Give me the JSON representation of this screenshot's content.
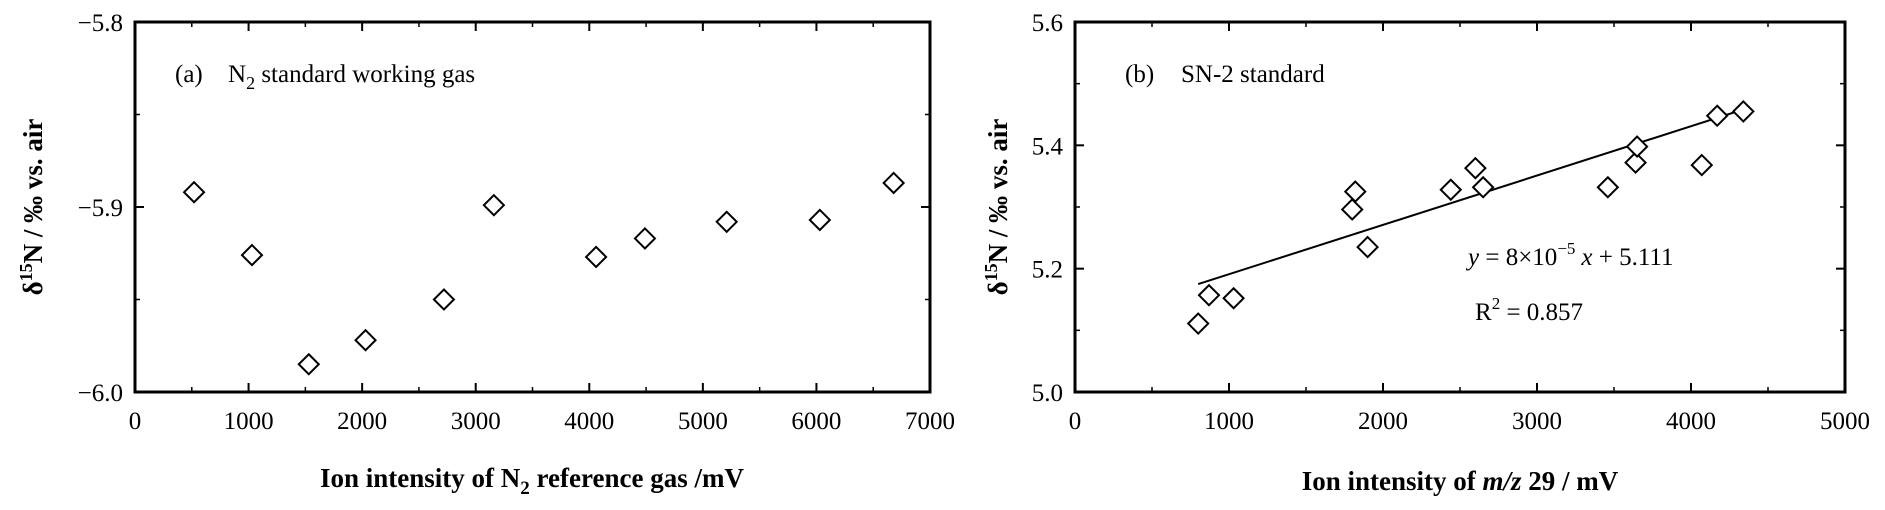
{
  "chart_data": [
    {
      "type": "scatter",
      "panel_label": "(a)",
      "title_text": "N",
      "title_sub": "2",
      "title_rest": " standard working gas",
      "xlabel_pre": "Ion intensity of N",
      "xlabel_sub": "2",
      "xlabel_post": " reference  gas /mV",
      "ylabel_delta": "δ",
      "ylabel_sup": "15",
      "ylabel_post": "N / ‰ vs. air",
      "xlim": [
        0,
        7000
      ],
      "ylim": [
        -6.0,
        -5.8
      ],
      "xticks": [
        "0",
        "1000",
        "2000",
        "3000",
        "4000",
        "5000",
        "6000",
        "7000"
      ],
      "yticks": [
        "−6.0",
        "−5.9",
        "−5.8"
      ],
      "x": [
        520,
        1030,
        1530,
        2030,
        2720,
        3160,
        4060,
        4490,
        5210,
        6030,
        6680
      ],
      "y": [
        -5.892,
        -5.926,
        -5.985,
        -5.972,
        -5.95,
        -5.899,
        -5.927,
        -5.917,
        -5.908,
        -5.907,
        -5.887
      ],
      "marker": "diamond-open",
      "grid": false
    },
    {
      "type": "scatter",
      "panel_label": "(b)",
      "title_text": "SN-2 standard",
      "xlabel_pre": "Ion intensity of ",
      "xlabel_italic": "m/z",
      "xlabel_post": " 29 / mV",
      "ylabel_delta": "δ",
      "ylabel_sup": "15",
      "ylabel_post": "N / ‰ vs. air",
      "xlim": [
        0,
        5000
      ],
      "ylim": [
        5.0,
        5.6
      ],
      "xticks": [
        "0",
        "1000",
        "2000",
        "3000",
        "4000",
        "5000"
      ],
      "yticks": [
        "5.0",
        "5.2",
        "5.4",
        "5.6"
      ],
      "x": [
        800,
        870,
        1030,
        1800,
        1820,
        1900,
        2440,
        2600,
        2650,
        3460,
        3640,
        3650,
        4070,
        4170,
        4340
      ],
      "y": [
        5.111,
        5.157,
        5.152,
        5.296,
        5.325,
        5.235,
        5.328,
        5.363,
        5.332,
        5.332,
        5.372,
        5.398,
        5.368,
        5.448,
        5.455
      ],
      "marker": "diamond-open",
      "fit": {
        "x_range": [
          800,
          4340
        ],
        "slope": 8e-05,
        "intercept": 5.111
      },
      "eq_y": "y",
      "eq_base": " = 8×10",
      "eq_exp": "−5",
      "eq_x": "x",
      "eq_rest": " + 5.111",
      "r2_label": "R",
      "r2_sup": "2",
      "r2_rest": " = 0.857",
      "grid": false
    }
  ]
}
